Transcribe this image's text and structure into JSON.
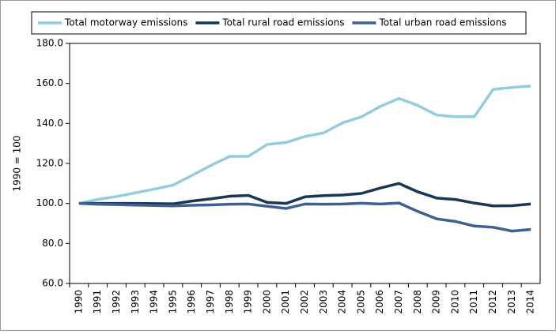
{
  "chart_data": {
    "type": "line",
    "y_label": "1990 = 100",
    "categories": [
      "1990",
      "1991",
      "1992",
      "1993",
      "1994",
      "1995",
      "1996",
      "1997",
      "1998",
      "1999",
      "2000",
      "2001",
      "2002",
      "2003",
      "2004",
      "2005",
      "2006",
      "2007",
      "2008",
      "2009",
      "2010",
      "2011",
      "2012",
      "2013",
      "2014"
    ],
    "series": [
      {
        "name": "Total motorway emissions",
        "color": "#93cddd",
        "values": [
          100,
          102,
          103.5,
          105.3,
          107.2,
          109.2,
          114,
          119,
          123.5,
          123.6,
          129.5,
          130.5,
          133.5,
          135.3,
          140.3,
          143.3,
          148.5,
          152.5,
          149,
          144.2,
          143.4,
          143.4,
          157,
          158,
          158.7
        ]
      },
      {
        "name": "Total rural road emissions",
        "color": "#1b3557",
        "values": [
          100,
          100,
          100,
          100,
          99.9,
          99.8,
          101.2,
          102.3,
          103.6,
          104,
          100.5,
          100,
          103.3,
          103.9,
          104.2,
          105,
          107.7,
          110,
          105.8,
          102.7,
          102,
          100.2,
          98.8,
          98.9,
          99.7
        ]
      },
      {
        "name": "Total urban road emissions",
        "color": "#3f6090",
        "values": [
          100,
          99.6,
          99.4,
          99.2,
          99,
          98.8,
          99.1,
          99.3,
          99.6,
          99.7,
          98.6,
          97.5,
          99.7,
          99.6,
          99.7,
          100.1,
          99.7,
          100.2,
          96,
          92.3,
          91,
          88.7,
          88.1,
          86.2,
          87
        ]
      }
    ],
    "ylim": [
      60,
      180
    ],
    "yticks": [
      {
        "value": 60,
        "label": "60.0"
      },
      {
        "value": 80,
        "label": "80.0"
      },
      {
        "value": 100,
        "label": "100.0"
      },
      {
        "value": 120,
        "label": "120.0"
      },
      {
        "value": 140,
        "label": "140.0"
      },
      {
        "value": 160,
        "label": "160.0"
      },
      {
        "value": 180,
        "label": "180.0"
      }
    ],
    "legend": "top"
  }
}
